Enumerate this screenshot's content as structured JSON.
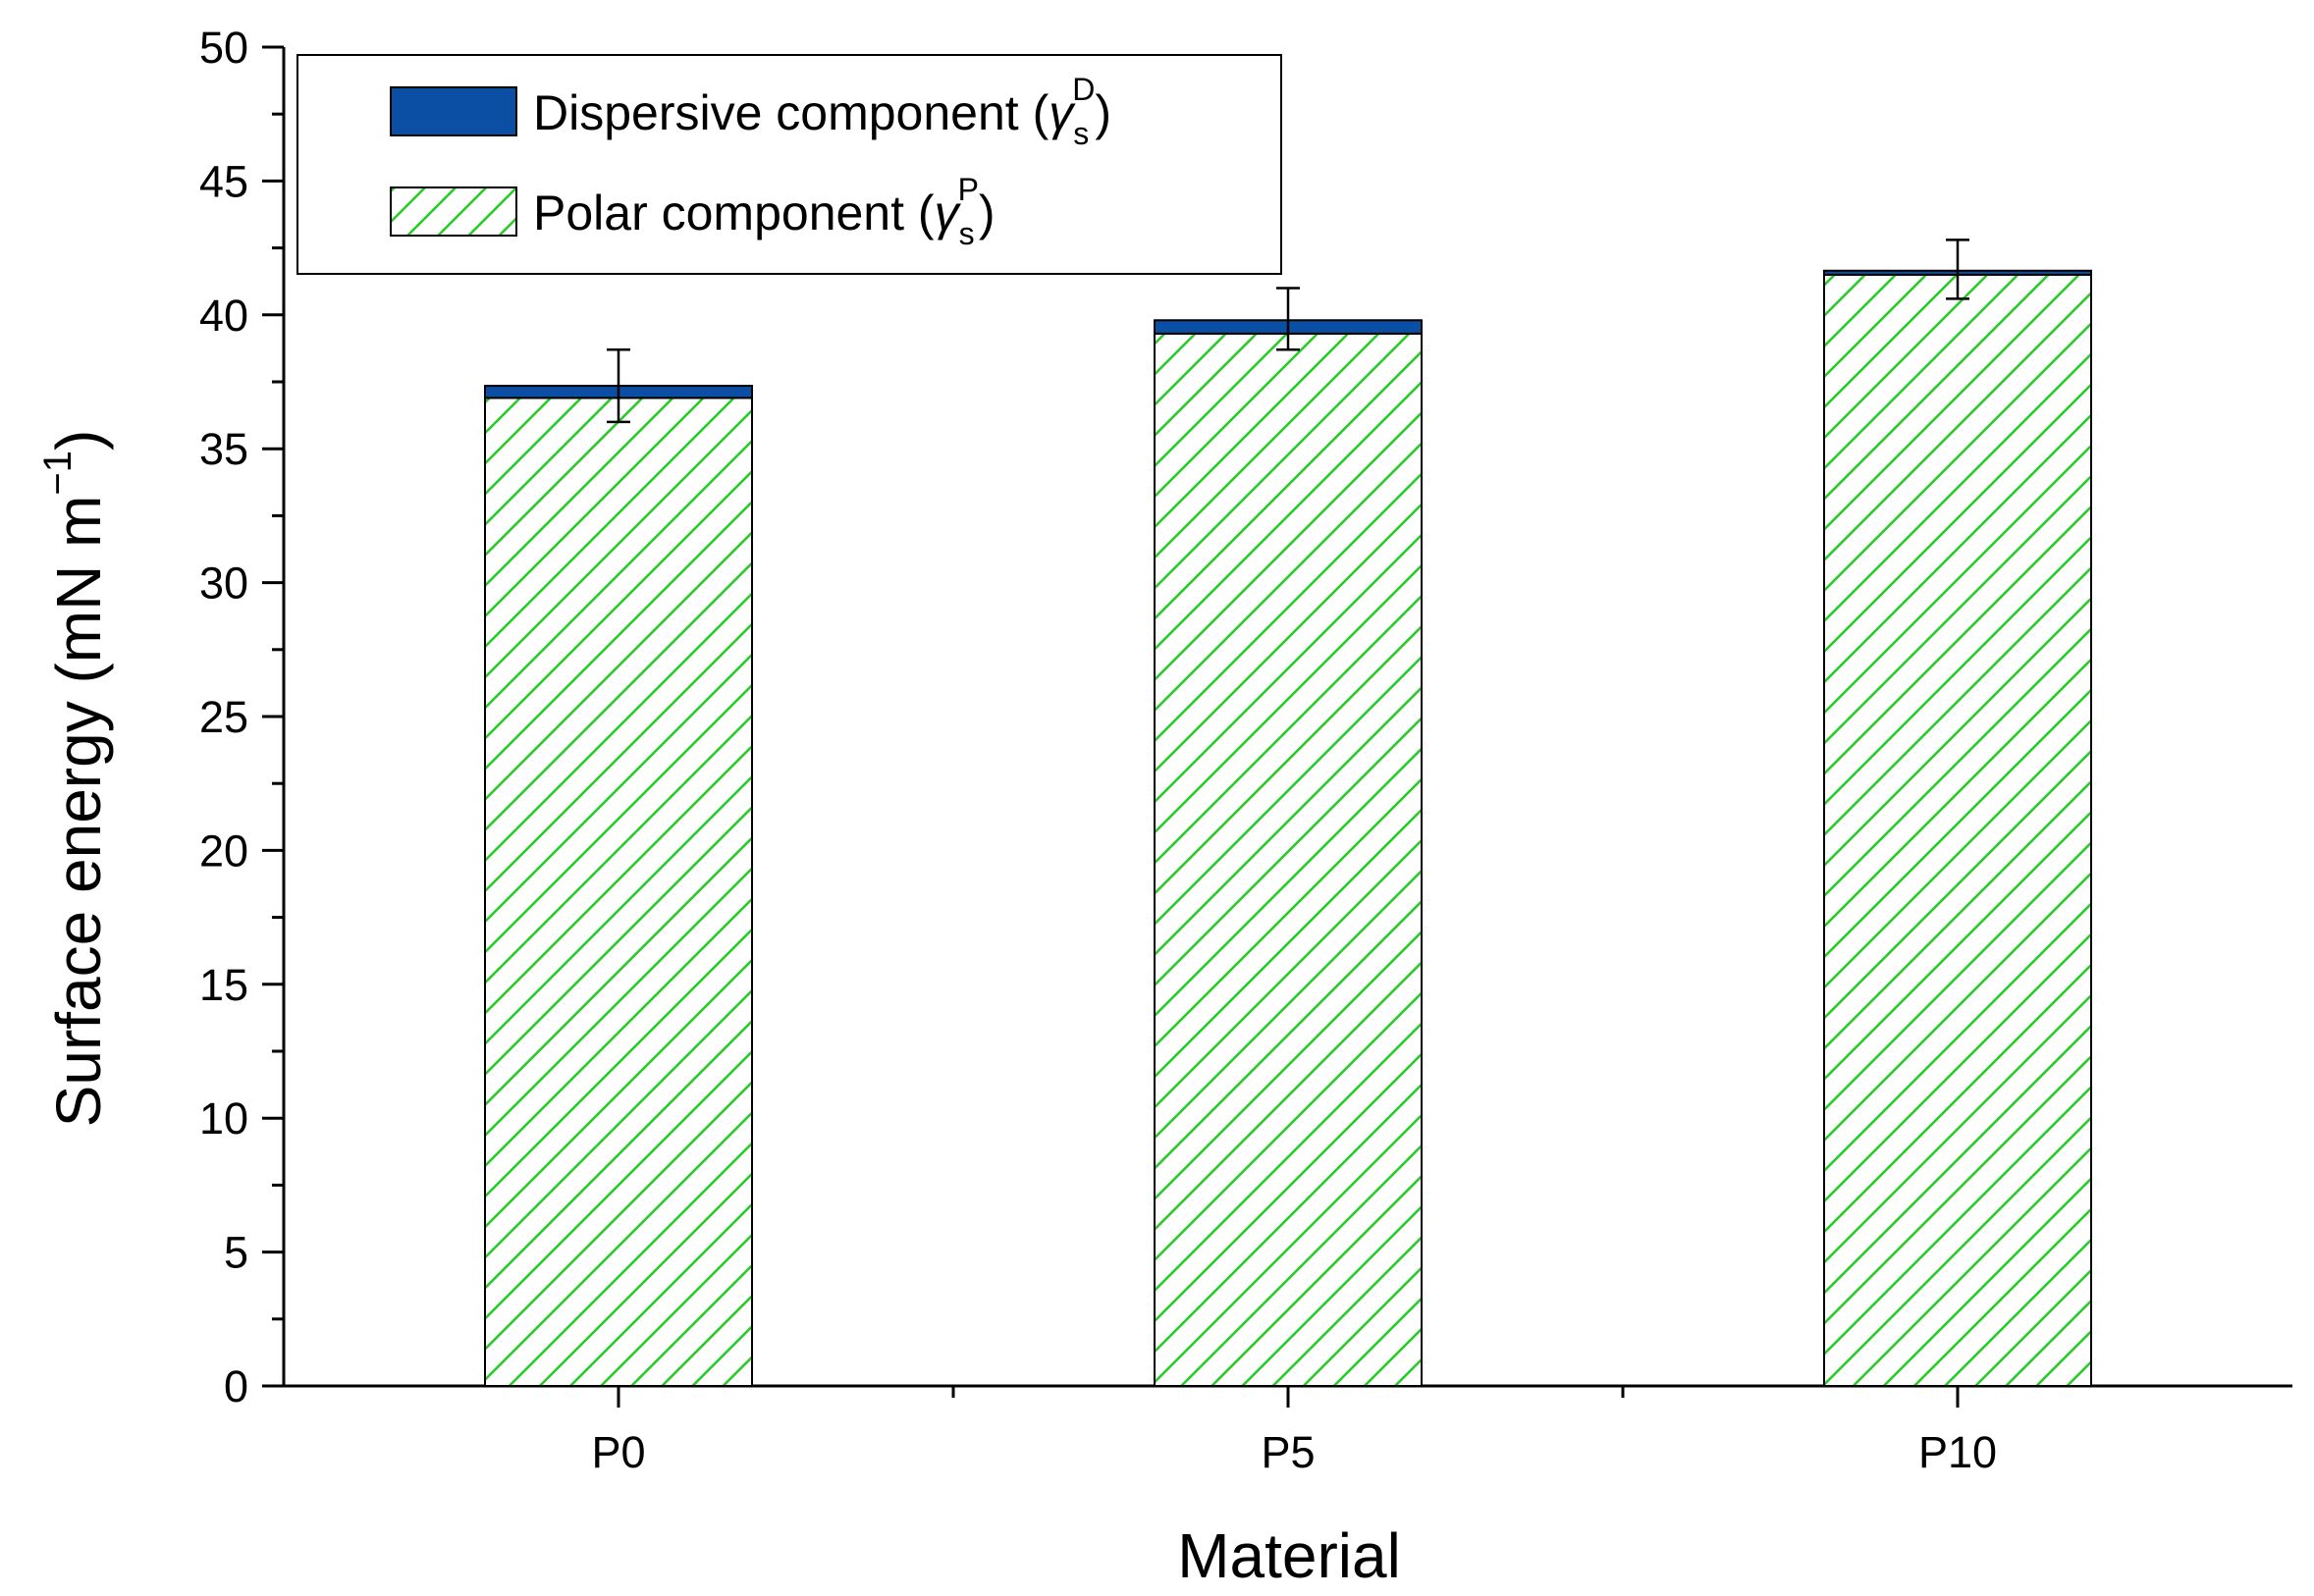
{
  "chart_data": {
    "type": "bar",
    "stacked": true,
    "categories": [
      "P0",
      "P5",
      "P10"
    ],
    "series": [
      {
        "name": "Polar component",
        "symbol": "γ",
        "subscript": "s",
        "superscript": "P",
        "color": "#22cc22",
        "pattern": "diagonal-hatch",
        "values": [
          36.9,
          39.3,
          41.5
        ]
      },
      {
        "name": "Dispersive component",
        "symbol": "γ",
        "subscript": "s",
        "superscript": "D",
        "color": "#0a4fa3",
        "pattern": "solid",
        "values": [
          0.45,
          0.5,
          0.15
        ]
      }
    ],
    "error_bars": [
      {
        "category": "P0",
        "low": 36.0,
        "high": 38.7
      },
      {
        "category": "P5",
        "low": 38.7,
        "high": 41.0
      },
      {
        "category": "P10",
        "low": 40.6,
        "high": 42.8
      }
    ],
    "xlabel": "Material",
    "ylabel_main": "Surface energy (mN m",
    "ylabel_sup": "−1",
    "ylabel_close": ")",
    "ylim": [
      0,
      50
    ],
    "ytick_step": 5,
    "yticks": [
      "0",
      "5",
      "10",
      "15",
      "20",
      "25",
      "30",
      "35",
      "40",
      "45",
      "50"
    ],
    "grid": false,
    "legend_position": "top-left",
    "legend_order": [
      "Dispersive component",
      "Polar component"
    ]
  }
}
